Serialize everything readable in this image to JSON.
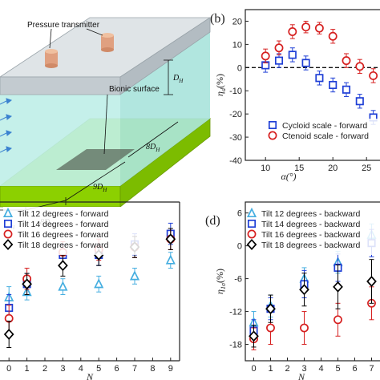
{
  "diagram": {
    "pressure_label": "Pressure transmitter",
    "bionic_label": "Bionic surface",
    "dh_label": "D",
    "dh_sub": "H",
    "dims": [
      "D",
      "8D",
      "9D",
      "8D"
    ]
  },
  "colors": {
    "blue": "#1f3fd6",
    "red": "#d62020",
    "cyan": "#45aee0",
    "black": "#000000",
    "glass_top": "#cfd6da",
    "water": "#bfeee8",
    "green": "#9ee000"
  },
  "chart_data": [
    {
      "panel": "(b)",
      "type": "scatter",
      "xlabel": "α(°)",
      "ylabel": "η",
      "ylabel_sub": "d",
      "ylabel_unit": "(%)",
      "xlim": [
        7,
        27
      ],
      "ylim": [
        -40,
        25
      ],
      "xticks": [
        10,
        15,
        20,
        25
      ],
      "yticks": [
        -40,
        -30,
        -20,
        -10,
        0,
        10,
        20
      ],
      "reference_line": 0,
      "legend": "bottom-right",
      "series": [
        {
          "name": "Cycloid scale - forward",
          "marker": "square",
          "color": "blue",
          "x": [
            10,
            12,
            14,
            16,
            18,
            20,
            22,
            24,
            26
          ],
          "y": [
            1,
            3,
            5.5,
            2,
            -4.5,
            -7.5,
            -9.5,
            -14.5,
            -21.5
          ],
          "err": [
            3,
            3,
            3,
            3,
            3,
            3,
            3,
            3,
            3
          ]
        },
        {
          "name": "Ctenoid scale - forward",
          "marker": "circle",
          "color": "red",
          "x": [
            10,
            12,
            14,
            16,
            18,
            20,
            22,
            24,
            26
          ],
          "y": [
            5,
            8.5,
            15.5,
            17.5,
            17,
            13.5,
            3,
            0.5,
            -3.5
          ],
          "err": [
            3,
            3,
            3,
            2.5,
            2.5,
            3,
            3,
            3,
            3
          ]
        }
      ]
    },
    {
      "panel": "",
      "type": "scatter",
      "xlabel": "N",
      "xlim": [
        -0.5,
        9.5
      ],
      "ylim": [
        -21,
        9
      ],
      "xticks": [
        0,
        1,
        2,
        3,
        4,
        5,
        6,
        7,
        8,
        9
      ],
      "legend": "top-left",
      "series": [
        {
          "name": "Tilt 12 degrees - forward",
          "marker": "triangle",
          "color": "cyan",
          "x": [
            0,
            1,
            3,
            5,
            7,
            9
          ],
          "y": [
            -9,
            -8,
            -7,
            -6.5,
            -5,
            -2
          ],
          "err": [
            2,
            1.5,
            1.5,
            1.5,
            1.5,
            1.5
          ]
        },
        {
          "name": "Tilt 14 degrees - forward",
          "marker": "square",
          "color": "blue",
          "x": [
            0,
            1,
            3,
            5,
            7,
            9
          ],
          "y": [
            -11,
            -6.5,
            -1,
            -1,
            1,
            3
          ],
          "err": [
            2.5,
            2,
            2,
            2,
            2,
            2
          ]
        },
        {
          "name": "Tilt 16 degrees - forward",
          "marker": "circle",
          "color": "red",
          "x": [
            0,
            1,
            3,
            5,
            7,
            9
          ],
          "y": [
            -13,
            -5.5,
            -0.5,
            0,
            0.5,
            2
          ],
          "err": [
            2.5,
            2,
            2,
            2,
            2,
            2
          ]
        },
        {
          "name": "Tilt 18 degrees - forward",
          "marker": "diamond",
          "color": "black",
          "x": [
            0,
            1,
            3,
            5,
            7,
            9
          ],
          "y": [
            -16,
            -6.5,
            -3,
            -1,
            0.5,
            2
          ],
          "err": [
            2.5,
            2,
            2,
            2,
            2,
            2
          ]
        }
      ]
    },
    {
      "panel": "(d)",
      "type": "scatter",
      "xlabel": "N",
      "ylabel": "η",
      "ylabel_sub": "1σ",
      "ylabel_unit": "(%)",
      "xlim": [
        -0.5,
        7.5
      ],
      "ylim": [
        -21,
        8
      ],
      "xticks": [
        0,
        1,
        2,
        3,
        4,
        5,
        6,
        7
      ],
      "yticks": [
        -18,
        -12,
        -6,
        0,
        6
      ],
      "legend": "top-left",
      "series": [
        {
          "name": "Tilt 12 degrees - backward",
          "marker": "triangle",
          "color": "cyan",
          "x": [
            0,
            1,
            3,
            5,
            7
          ],
          "y": [
            -14,
            -11,
            -6,
            -3,
            2
          ],
          "err": [
            2,
            2,
            2,
            2,
            2
          ]
        },
        {
          "name": "Tilt 14 degrees - backward",
          "marker": "square",
          "color": "blue",
          "x": [
            0,
            1,
            3,
            5,
            7
          ],
          "y": [
            -15.5,
            -11.5,
            -7,
            -4,
            0.5
          ],
          "err": [
            2,
            2,
            2.5,
            2.5,
            2.5
          ]
        },
        {
          "name": "Tilt 16 degrees - backward",
          "marker": "circle",
          "color": "red",
          "x": [
            0,
            1,
            3,
            5,
            7
          ],
          "y": [
            -17,
            -15,
            -15,
            -13.5,
            -10.5
          ],
          "err": [
            2,
            3,
            3,
            3,
            3
          ]
        },
        {
          "name": "Tilt 18 degrees - backward",
          "marker": "diamond",
          "color": "black",
          "x": [
            0,
            1,
            3,
            5,
            7
          ],
          "y": [
            -16.5,
            -11.5,
            -8,
            -7.5,
            -6.5
          ],
          "err": [
            2,
            2.5,
            3,
            4,
            4
          ]
        }
      ]
    }
  ]
}
